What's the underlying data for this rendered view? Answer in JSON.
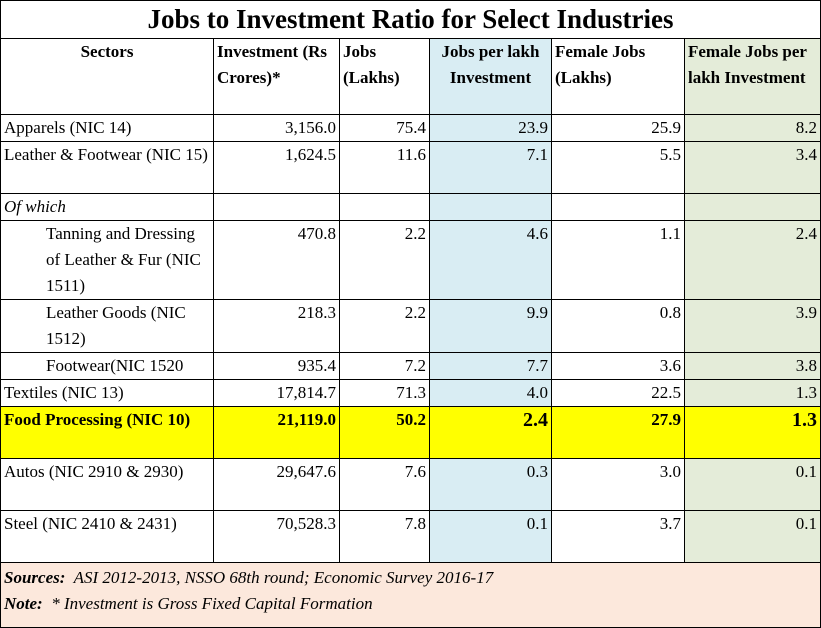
{
  "title": "Jobs to Investment Ratio for Select Industries",
  "headers": {
    "sectors": "Sectors",
    "investment": "Investment (Rs Crores)*",
    "jobs": "Jobs (Lakhs)",
    "jobs_per_lakh": "Jobs per lakh Investment",
    "female_jobs": "Female Jobs (Lakhs)",
    "female_per_lakh": "Female Jobs per lakh Investment"
  },
  "rows": [
    {
      "sector": "Apparels (NIC 14)",
      "investment": "3,156.0",
      "jobs": "75.4",
      "jobs_per_lakh": "23.9",
      "female_jobs": "25.9",
      "female_per_lakh": "8.2"
    },
    {
      "sector": "Leather & Footwear (NIC 15)",
      "investment": "1,624.5",
      "jobs": "11.6",
      "jobs_per_lakh": "7.1",
      "female_jobs": "5.5",
      "female_per_lakh": "3.4"
    },
    {
      "sector": "Of which",
      "investment": "",
      "jobs": "",
      "jobs_per_lakh": "",
      "female_jobs": "",
      "female_per_lakh": ""
    },
    {
      "sector": "Tanning and Dressing of Leather & Fur (NIC 1511)",
      "investment": "470.8",
      "jobs": "2.2",
      "jobs_per_lakh": "4.6",
      "female_jobs": "1.1",
      "female_per_lakh": "2.4"
    },
    {
      "sector": "Leather Goods (NIC 1512)",
      "investment": "218.3",
      "jobs": "2.2",
      "jobs_per_lakh": "9.9",
      "female_jobs": "0.8",
      "female_per_lakh": "3.9"
    },
    {
      "sector": "Footwear(NIC 1520",
      "investment": "935.4",
      "jobs": "7.2",
      "jobs_per_lakh": "7.7",
      "female_jobs": "3.6",
      "female_per_lakh": "3.8"
    },
    {
      "sector": "Textiles (NIC 13)",
      "investment": "17,814.7",
      "jobs": "71.3",
      "jobs_per_lakh": "4.0",
      "female_jobs": "22.5",
      "female_per_lakh": "1.3"
    },
    {
      "sector": "Food Processing (NIC 10)",
      "investment": "21,119.0",
      "jobs": "50.2",
      "jobs_per_lakh": "2.4",
      "female_jobs": "27.9",
      "female_per_lakh": "1.3"
    },
    {
      "sector": "Autos (NIC 2910 & 2930)",
      "investment": "29,647.6",
      "jobs": "7.6",
      "jobs_per_lakh": "0.3",
      "female_jobs": "3.0",
      "female_per_lakh": "0.1"
    },
    {
      "sector": "Steel (NIC 2410 & 2431)",
      "investment": "70,528.3",
      "jobs": "7.8",
      "jobs_per_lakh": "0.1",
      "female_jobs": "3.7",
      "female_per_lakh": "0.1"
    }
  ],
  "footer": {
    "sources_label": "Sources:",
    "sources_text": "ASI 2012-2013, NSSO 68th round; Economic Survey 2016-17",
    "note_label": "Note:",
    "note_text": "* Investment is Gross Fixed Capital Formation"
  },
  "colors": {
    "highlight_row": "#ffff00",
    "jobs_col": "#d9edf3",
    "female_col": "#e4ecd9",
    "footer": "#fce8dc"
  }
}
